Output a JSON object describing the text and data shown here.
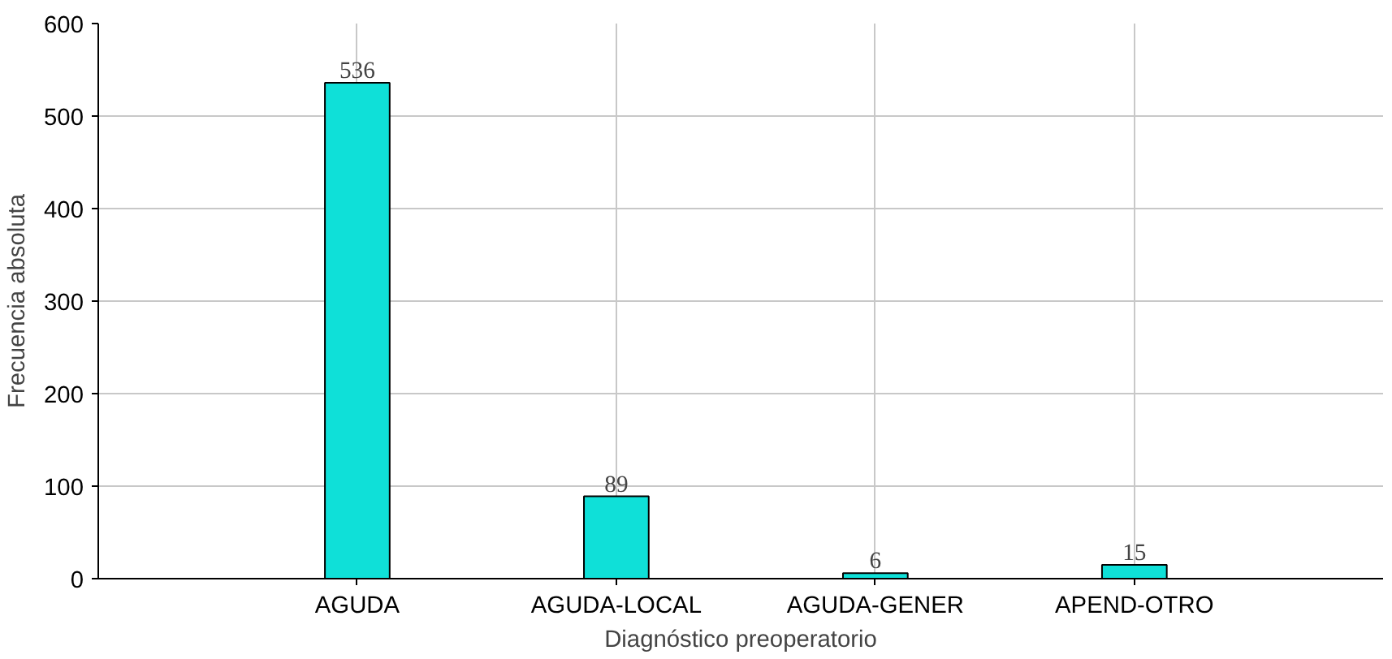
{
  "chart_data": {
    "type": "bar",
    "xlabel": "Diagnóstico preoperatorio",
    "ylabel": "Frecuencia absoluta",
    "categories": [
      "AGUDA",
      "AGUDA-LOCAL",
      "AGUDA-GENER",
      "APEND-OTRO"
    ],
    "values": [
      536,
      89,
      6,
      15
    ],
    "color": "#0fe0d8",
    "ylim": [
      0,
      600
    ],
    "yticks": [
      0,
      100,
      200,
      300,
      400,
      500,
      600
    ],
    "grid": true,
    "data_labels": true
  }
}
